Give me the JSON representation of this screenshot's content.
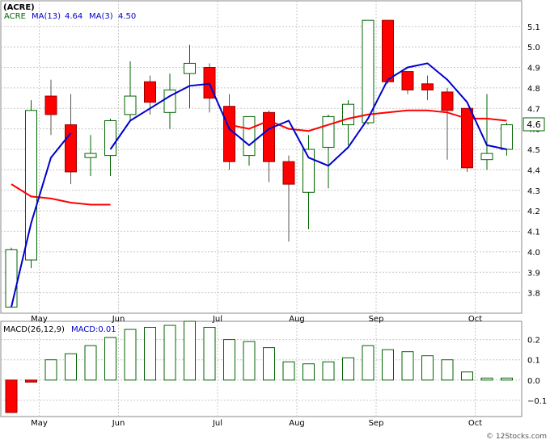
{
  "header": {
    "title": "(ACRE)",
    "legend_ticker": "ACRE",
    "legend_ma13": "MA(13)",
    "legend_ma13_value": "4.64",
    "legend_ma3": "MA(3)",
    "legend_ma3_value": "4.50",
    "macd_label": "MACD(26,12,9)",
    "macd_value_label": "MACD:0.01"
  },
  "watermark": "© 12Stocks.com",
  "last_price_label": "4.6",
  "colors": {
    "up_candle_border": "#006400",
    "down_candle_fill": "#ff0000",
    "ma13": "#ff0000",
    "ma3": "#0000cc",
    "macd_positive_border": "#006400",
    "macd_negative_fill": "#ff0000",
    "last_price_box": "#006400"
  },
  "chart_data": [
    {
      "type": "candlestick",
      "ticker": "ACRE",
      "x_labels": [
        "May",
        "Jun",
        "Jul",
        "Aug",
        "Sep",
        "Oct"
      ],
      "y_ticks": [
        3.8,
        3.9,
        4.0,
        4.1,
        4.2,
        4.3,
        4.4,
        4.5,
        4.6,
        4.7,
        4.8,
        4.9,
        5.0,
        5.1
      ],
      "ylim": [
        3.7,
        5.17
      ],
      "grid": true,
      "candles": [
        {
          "open": 3.73,
          "high": 4.02,
          "low": 3.73,
          "close": 4.01
        },
        {
          "open": 3.96,
          "high": 4.74,
          "low": 3.92,
          "close": 4.69
        },
        {
          "open": 4.76,
          "high": 4.84,
          "low": 4.57,
          "close": 4.67
        },
        {
          "open": 4.62,
          "high": 4.77,
          "low": 4.33,
          "close": 4.39
        },
        {
          "open": 4.46,
          "high": 4.57,
          "low": 4.37,
          "close": 4.48
        },
        {
          "open": 4.47,
          "high": 4.65,
          "low": 4.37,
          "close": 4.64
        },
        {
          "open": 4.67,
          "high": 4.93,
          "low": 4.64,
          "close": 4.76
        },
        {
          "open": 4.83,
          "high": 4.86,
          "low": 4.67,
          "close": 4.73
        },
        {
          "open": 4.68,
          "high": 4.87,
          "low": 4.6,
          "close": 4.79
        },
        {
          "open": 4.87,
          "high": 5.01,
          "low": 4.7,
          "close": 4.92
        },
        {
          "open": 4.9,
          "high": 4.92,
          "low": 4.68,
          "close": 4.75
        },
        {
          "open": 4.71,
          "high": 4.77,
          "low": 4.4,
          "close": 4.44
        },
        {
          "open": 4.47,
          "high": 4.66,
          "low": 4.42,
          "close": 4.66
        },
        {
          "open": 4.68,
          "high": 4.69,
          "low": 4.34,
          "close": 4.44
        },
        {
          "open": 4.44,
          "high": 4.47,
          "low": 4.05,
          "close": 4.33
        },
        {
          "open": 4.29,
          "high": 4.57,
          "low": 4.11,
          "close": 4.5
        },
        {
          "open": 4.51,
          "high": 4.67,
          "low": 4.31,
          "close": 4.66
        },
        {
          "open": 4.62,
          "high": 4.74,
          "low": 4.52,
          "close": 4.72
        },
        {
          "open": 4.63,
          "high": 5.13,
          "low": 4.62,
          "close": 5.13
        },
        {
          "open": 5.13,
          "high": 5.13,
          "low": 4.82,
          "close": 4.83
        },
        {
          "open": 4.88,
          "high": 4.88,
          "low": 4.77,
          "close": 4.79
        },
        {
          "open": 4.82,
          "high": 4.86,
          "low": 4.74,
          "close": 4.79
        },
        {
          "open": 4.78,
          "high": 4.8,
          "low": 4.45,
          "close": 4.69
        },
        {
          "open": 4.7,
          "high": 4.7,
          "low": 4.39,
          "close": 4.41
        },
        {
          "open": 4.45,
          "high": 4.77,
          "low": 4.4,
          "close": 4.48
        },
        {
          "open": 4.5,
          "high": 4.63,
          "low": 4.47,
          "close": 4.62
        }
      ],
      "ma13": [
        4.33,
        4.27,
        4.26,
        4.24,
        4.23,
        4.23,
        null,
        null,
        null,
        null,
        null,
        4.62,
        4.6,
        4.64,
        4.6,
        4.59,
        4.62,
        4.65,
        4.67,
        4.68,
        4.69,
        4.69,
        4.68,
        4.65,
        4.65,
        4.64
      ],
      "ma3": [
        3.73,
        4.14,
        4.46,
        4.58,
        null,
        4.5,
        4.64,
        4.7,
        4.76,
        4.81,
        4.82,
        4.6,
        4.52,
        4.6,
        4.64,
        4.46,
        4.42,
        4.51,
        4.65,
        4.84,
        4.9,
        4.92,
        4.84,
        4.73,
        4.52,
        4.5
      ]
    },
    {
      "type": "bar",
      "name": "MACD(26,12,9)",
      "y_ticks": [
        -0.1,
        0.0,
        0.1,
        0.2
      ],
      "ylim": [
        -0.18,
        0.29
      ],
      "grid": true,
      "values": [
        -0.16,
        -0.01,
        0.1,
        0.13,
        0.17,
        0.21,
        0.25,
        0.26,
        0.27,
        0.29,
        0.26,
        0.2,
        0.19,
        0.16,
        0.09,
        0.08,
        0.09,
        0.11,
        0.17,
        0.15,
        0.14,
        0.12,
        0.1,
        0.04,
        0.01,
        0.01
      ]
    }
  ]
}
